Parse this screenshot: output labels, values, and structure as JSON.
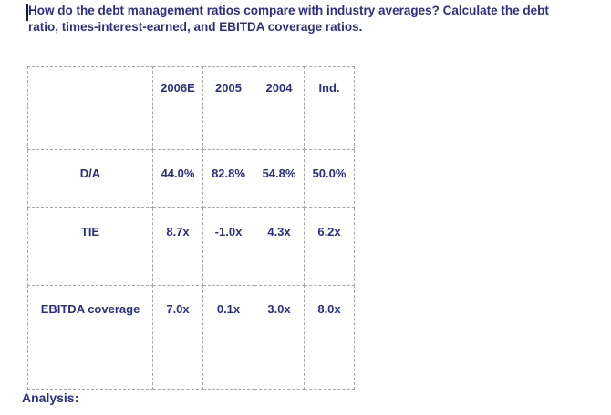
{
  "title": {
    "line1": "How do the debt management ratios compare with industry averages? Calculate the debt",
    "line2": "ratio, times-interest-earned, and EBITDA coverage ratios."
  },
  "table": {
    "columns": [
      "2006E",
      "2005",
      "2004",
      "Ind."
    ],
    "rows": [
      {
        "label": "D/A",
        "values": [
          "44.0%",
          "82.8%",
          "54.8%",
          "50.0%"
        ]
      },
      {
        "label": "TIE",
        "values": [
          "8.7x",
          "-1.0x",
          "4.3x",
          "6.2x"
        ]
      },
      {
        "label": "EBITDA coverage",
        "values": [
          "7.0x",
          "0.1x",
          "3.0x",
          "8.0x"
        ]
      }
    ]
  },
  "analysis": {
    "label": "Analysis:"
  },
  "colors": {
    "text_navy": "#2b3085",
    "border_gray": "#a6a6a6",
    "background": "#ffffff"
  }
}
